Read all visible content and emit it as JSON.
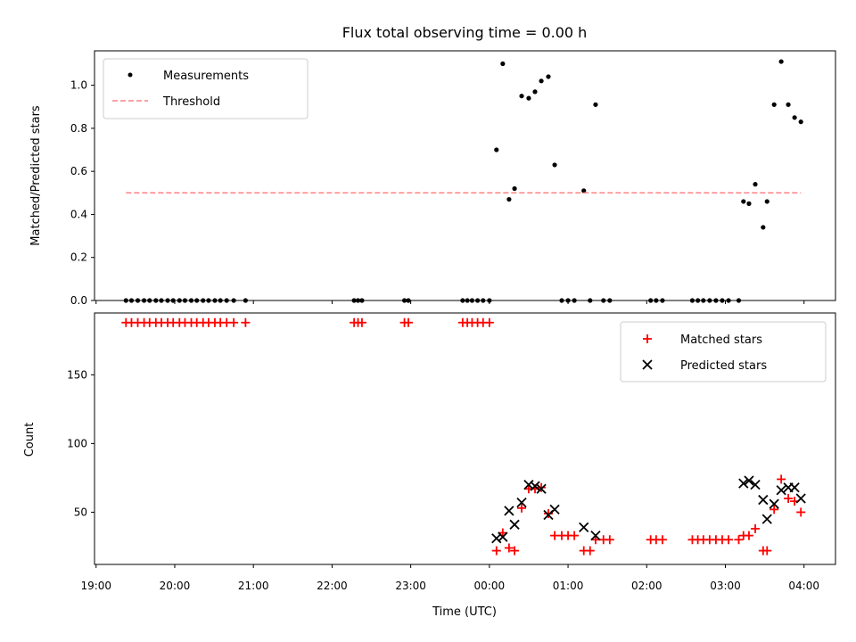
{
  "chart_data": [
    {
      "type": "scatter",
      "title": "Flux total observing time = 0.00 h",
      "xlabel": "",
      "ylabel": "Matched/Predicted stars",
      "ylim": [
        0,
        1.16
      ],
      "yticks": [
        0.0,
        0.2,
        0.4,
        0.6,
        0.8,
        1.0
      ],
      "ytick_labels": [
        "0.0",
        "0.2",
        "0.4",
        "0.6",
        "0.8",
        "1.0"
      ],
      "x_axis": "time in hours, 19:00 on night start; values past 24 continue into next day",
      "xlim": [
        18.98,
        28.4
      ],
      "legend_position": "top-left",
      "series": [
        {
          "name": "Measurements",
          "color": "#000000",
          "marker": "dot",
          "points": [
            [
              19.38,
              0
            ],
            [
              19.45,
              0
            ],
            [
              19.53,
              0
            ],
            [
              19.61,
              0
            ],
            [
              19.68,
              0
            ],
            [
              19.76,
              0
            ],
            [
              19.83,
              0
            ],
            [
              19.91,
              0
            ],
            [
              19.98,
              0
            ],
            [
              20.06,
              0
            ],
            [
              20.13,
              0
            ],
            [
              20.21,
              0
            ],
            [
              20.28,
              0
            ],
            [
              20.36,
              0
            ],
            [
              20.43,
              0
            ],
            [
              20.51,
              0
            ],
            [
              20.58,
              0
            ],
            [
              20.66,
              0
            ],
            [
              20.75,
              0
            ],
            [
              20.9,
              0
            ],
            [
              22.28,
              0
            ],
            [
              22.33,
              0
            ],
            [
              22.38,
              0
            ],
            [
              22.92,
              0
            ],
            [
              22.97,
              0
            ],
            [
              23.66,
              0
            ],
            [
              23.72,
              0
            ],
            [
              23.78,
              0
            ],
            [
              23.85,
              0
            ],
            [
              23.92,
              0
            ],
            [
              24.0,
              0
            ],
            [
              24.09,
              0.7
            ],
            [
              24.17,
              1.1
            ],
            [
              24.25,
              0.47
            ],
            [
              24.32,
              0.52
            ],
            [
              24.41,
              0.95
            ],
            [
              24.5,
              0.94
            ],
            [
              24.58,
              0.97
            ],
            [
              24.66,
              1.02
            ],
            [
              24.75,
              1.04
            ],
            [
              24.83,
              0.63
            ],
            [
              24.92,
              0
            ],
            [
              25.0,
              0
            ],
            [
              25.08,
              0
            ],
            [
              25.2,
              0.51
            ],
            [
              25.28,
              0
            ],
            [
              25.35,
              0.91
            ],
            [
              25.45,
              0
            ],
            [
              25.53,
              0
            ],
            [
              26.05,
              0
            ],
            [
              26.12,
              0
            ],
            [
              26.2,
              0
            ],
            [
              26.58,
              0
            ],
            [
              26.65,
              0
            ],
            [
              26.72,
              0
            ],
            [
              26.8,
              0
            ],
            [
              26.88,
              0
            ],
            [
              26.96,
              0
            ],
            [
              27.04,
              0
            ],
            [
              27.17,
              0
            ],
            [
              27.23,
              0.46
            ],
            [
              27.3,
              0.45
            ],
            [
              27.38,
              0.54
            ],
            [
              27.48,
              0.34
            ],
            [
              27.53,
              0.46
            ],
            [
              27.62,
              0.91
            ],
            [
              27.71,
              1.11
            ],
            [
              27.8,
              0.91
            ],
            [
              27.88,
              0.85
            ],
            [
              27.96,
              0.83
            ]
          ]
        },
        {
          "name": "Threshold",
          "color": "#ff8080",
          "style": "dashed",
          "points": [
            [
              19.38,
              0.5
            ],
            [
              27.96,
              0.5
            ]
          ]
        }
      ]
    },
    {
      "type": "scatter",
      "title": "",
      "xlabel": "Time (UTC)",
      "ylabel": "Count",
      "ylim": [
        12,
        195
      ],
      "yticks": [
        50,
        100,
        150
      ],
      "ytick_labels": [
        "50",
        "100",
        "150"
      ],
      "xlim": [
        18.98,
        28.4
      ],
      "xticks": [
        19,
        20,
        21,
        22,
        23,
        24,
        25,
        26,
        27,
        28
      ],
      "xtick_labels": [
        "19:00",
        "20:00",
        "21:00",
        "22:00",
        "23:00",
        "00:00",
        "01:00",
        "02:00",
        "03:00",
        "04:00"
      ],
      "legend_position": "top-right",
      "series": [
        {
          "name": "Matched stars",
          "color": "#ff0000",
          "marker": "plus",
          "points": [
            [
              19.38,
              188
            ],
            [
              19.45,
              188
            ],
            [
              19.53,
              188
            ],
            [
              19.61,
              188
            ],
            [
              19.68,
              188
            ],
            [
              19.76,
              188
            ],
            [
              19.83,
              188
            ],
            [
              19.91,
              188
            ],
            [
              19.98,
              188
            ],
            [
              20.06,
              188
            ],
            [
              20.13,
              188
            ],
            [
              20.21,
              188
            ],
            [
              20.28,
              188
            ],
            [
              20.36,
              188
            ],
            [
              20.43,
              188
            ],
            [
              20.51,
              188
            ],
            [
              20.58,
              188
            ],
            [
              20.66,
              188
            ],
            [
              20.75,
              188
            ],
            [
              20.9,
              188
            ],
            [
              22.28,
              188
            ],
            [
              22.33,
              188
            ],
            [
              22.38,
              188
            ],
            [
              22.92,
              188
            ],
            [
              22.97,
              188
            ],
            [
              23.66,
              188
            ],
            [
              23.72,
              188
            ],
            [
              23.78,
              188
            ],
            [
              23.85,
              188
            ],
            [
              23.92,
              188
            ],
            [
              24.0,
              188
            ],
            [
              24.09,
              22
            ],
            [
              24.17,
              35
            ],
            [
              24.25,
              24
            ],
            [
              24.32,
              22
            ],
            [
              24.41,
              53
            ],
            [
              24.5,
              67
            ],
            [
              24.58,
              67
            ],
            [
              24.66,
              68
            ],
            [
              24.75,
              49
            ],
            [
              24.83,
              33
            ],
            [
              24.92,
              33
            ],
            [
              25.0,
              33
            ],
            [
              25.08,
              33
            ],
            [
              25.2,
              22
            ],
            [
              25.28,
              22
            ],
            [
              25.35,
              30
            ],
            [
              25.45,
              30
            ],
            [
              25.53,
              30
            ],
            [
              26.05,
              30
            ],
            [
              26.12,
              30
            ],
            [
              26.2,
              30
            ],
            [
              26.58,
              30
            ],
            [
              26.65,
              30
            ],
            [
              26.72,
              30
            ],
            [
              26.8,
              30
            ],
            [
              26.88,
              30
            ],
            [
              26.96,
              30
            ],
            [
              27.04,
              30
            ],
            [
              27.17,
              30
            ],
            [
              27.23,
              33
            ],
            [
              27.3,
              33
            ],
            [
              27.38,
              38
            ],
            [
              27.48,
              22
            ],
            [
              27.53,
              22
            ],
            [
              27.62,
              52
            ],
            [
              27.71,
              74
            ],
            [
              27.8,
              60
            ],
            [
              27.88,
              58
            ],
            [
              27.96,
              50
            ]
          ]
        },
        {
          "name": "Predicted stars",
          "color": "#000000",
          "marker": "x",
          "points": [
            [
              24.09,
              31
            ],
            [
              24.17,
              32
            ],
            [
              24.25,
              51
            ],
            [
              24.32,
              41
            ],
            [
              24.41,
              57
            ],
            [
              24.5,
              70
            ],
            [
              24.58,
              69
            ],
            [
              24.66,
              67
            ],
            [
              24.75,
              48
            ],
            [
              24.83,
              52
            ],
            [
              25.2,
              39
            ],
            [
              25.35,
              33
            ],
            [
              27.23,
              71
            ],
            [
              27.3,
              73
            ],
            [
              27.38,
              70
            ],
            [
              27.48,
              59
            ],
            [
              27.53,
              45
            ],
            [
              27.62,
              56
            ],
            [
              27.71,
              66
            ],
            [
              27.8,
              68
            ],
            [
              27.88,
              68
            ],
            [
              27.96,
              60
            ]
          ]
        }
      ]
    }
  ]
}
